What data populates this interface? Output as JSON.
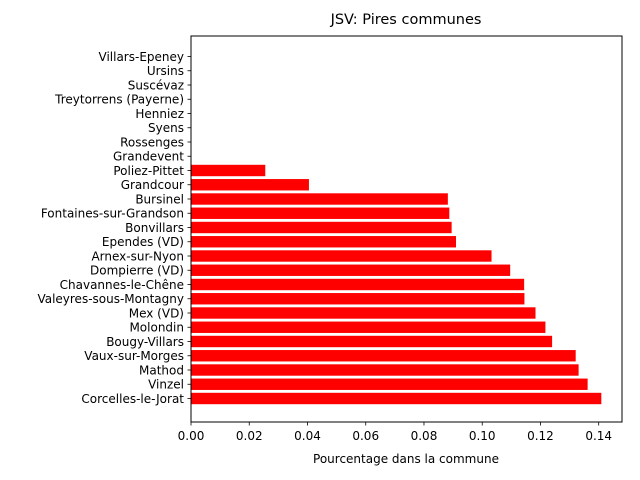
{
  "chart_data": {
    "type": "bar",
    "orientation": "horizontal",
    "title": "JSV: Pires communes",
    "xlabel": "Pourcentage dans la commune",
    "ylabel": "",
    "xlim": [
      0.0,
      0.148
    ],
    "xticks": [
      0.0,
      0.02,
      0.04,
      0.06,
      0.08,
      0.1,
      0.12,
      0.14
    ],
    "xtick_labels": [
      "0.00",
      "0.02",
      "0.04",
      "0.06",
      "0.08",
      "0.10",
      "0.12",
      "0.14"
    ],
    "bar_color": "#ff0000",
    "grid": false,
    "categories": [
      "Villars-Epeney",
      "Ursins",
      "Suscévaz",
      "Treytorrens (Payerne)",
      "Henniez",
      "Syens",
      "Rossenges",
      "Grandevent",
      "Poliez-Pittet",
      "Grandcour",
      "Bursinel",
      "Fontaines-sur-Grandson",
      "Bonvillars",
      "Ependes (VD)",
      "Arnex-sur-Nyon",
      "Dompierre (VD)",
      "Chavannes-le-Chêne",
      "Valeyres-sous-Montagny",
      "Mex (VD)",
      "Molondin",
      "Bougy-Villars",
      "Vaux-sur-Morges",
      "Mathod",
      "Vinzel",
      "Corcelles-le-Jorat"
    ],
    "values": [
      0.0,
      0.0,
      0.0,
      0.0,
      0.0,
      0.0,
      0.0,
      0.0,
      0.0255,
      0.0405,
      0.0882,
      0.0887,
      0.0895,
      0.091,
      0.1032,
      0.1096,
      0.1144,
      0.1145,
      0.1183,
      0.1217,
      0.124,
      0.1321,
      0.1331,
      0.1362,
      0.1409
    ]
  }
}
